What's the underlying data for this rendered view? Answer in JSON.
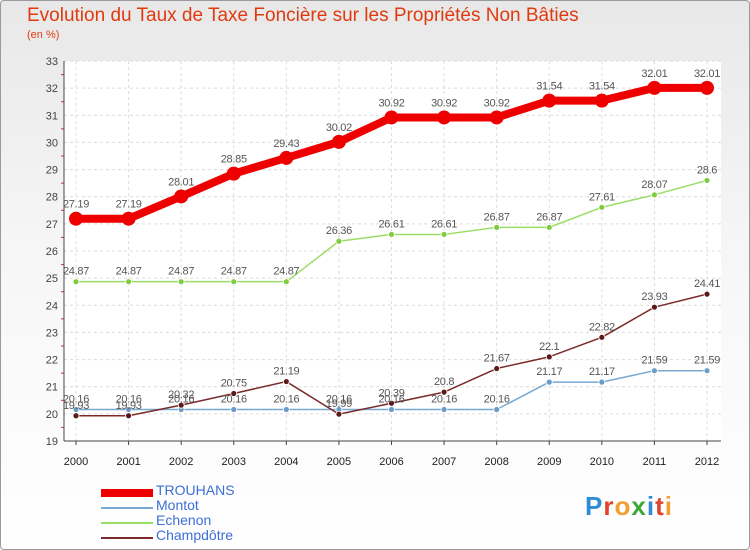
{
  "title": "Evolution du Taux de Taxe Foncière sur les Propriétés Non Bâties",
  "unit": "(en %)",
  "logo": {
    "text": "Proxiti",
    "letter_colors": [
      "#2b8fd6",
      "#e0442b",
      "#f0a030",
      "#3aaa35",
      "#2b8fd6",
      "#e0442b",
      "#f0a030"
    ]
  },
  "chart_data": {
    "type": "line",
    "x": [
      "2000",
      "2001",
      "2002",
      "2003",
      "2004",
      "2005",
      "2006",
      "2007",
      "2008",
      "2009",
      "2010",
      "2011",
      "2012"
    ],
    "ylim": [
      19,
      33
    ],
    "yticks": [
      "19",
      "20",
      "21",
      "22",
      "23",
      "24",
      "25",
      "26",
      "27",
      "28",
      "29",
      "30",
      "31",
      "32",
      "33"
    ],
    "grid": true,
    "legend_position": "bottom-left",
    "series": [
      {
        "name": "TROUHANS",
        "color": "#ee0000",
        "values": [
          27.19,
          27.19,
          28.01,
          28.85,
          29.43,
          30.02,
          30.92,
          30.92,
          30.92,
          31.54,
          31.54,
          32.01,
          32.01
        ],
        "labels": [
          "27.19",
          "27.19",
          "28.01",
          "28.85",
          "29.43",
          "30.02",
          "30.92",
          "30.92",
          "30.92",
          "31.54",
          "31.54",
          "32.01",
          "32.01"
        ]
      },
      {
        "name": "Montot",
        "color": "#77a9d4",
        "values": [
          20.16,
          20.16,
          20.16,
          20.16,
          20.16,
          20.16,
          20.16,
          20.16,
          20.16,
          21.17,
          21.17,
          21.59,
          21.59
        ],
        "labels": [
          "20.16",
          "20.16",
          "20.16",
          "20.16",
          "20.16",
          "20.16",
          "20.16",
          "20.16",
          "20.16",
          "21.17",
          "21.17",
          "21.59",
          "21.59"
        ]
      },
      {
        "name": "Echenon",
        "color": "#99dd66",
        "values": [
          24.87,
          24.87,
          24.87,
          24.87,
          24.87,
          26.36,
          26.61,
          26.61,
          26.87,
          26.87,
          27.61,
          28.07,
          28.6
        ],
        "labels": [
          "24.87",
          "24.87",
          "24.87",
          "24.87",
          "24.87",
          "26.36",
          "26.61",
          "26.61",
          "26.87",
          "26.87",
          "27.61",
          "28.07",
          "28.6"
        ]
      },
      {
        "name": "Champdôtre",
        "color": "#7a2a2a",
        "values": [
          19.93,
          19.93,
          20.32,
          20.75,
          21.19,
          19.99,
          20.39,
          20.8,
          21.67,
          22.1,
          22.82,
          23.93,
          24.41
        ],
        "labels": [
          "19.93",
          "19.93",
          "20.32",
          "20.75",
          "21.19",
          "19.99",
          "20.39",
          "20.8",
          "21.67",
          "22.1",
          "22.82",
          "23.93",
          "24.41"
        ]
      }
    ]
  }
}
